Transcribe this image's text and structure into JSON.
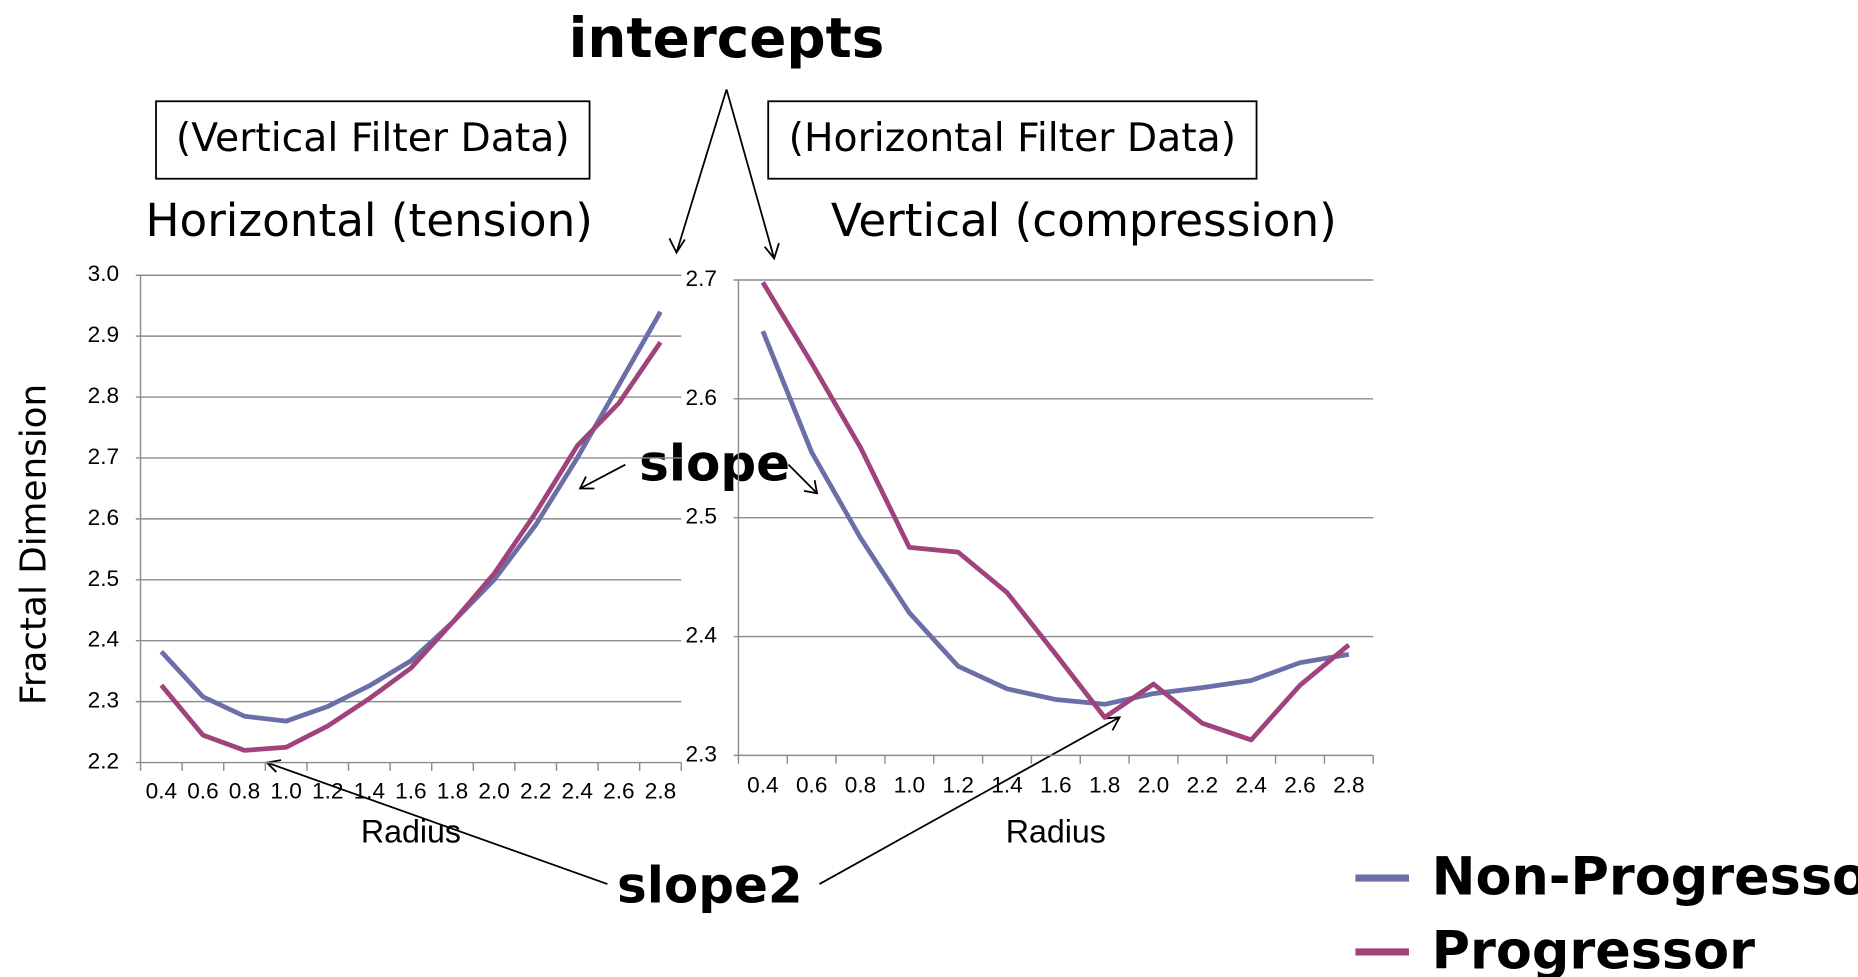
{
  "annotations": [
    "intercepts",
    "slope",
    "slope2"
  ],
  "chart_data": [
    {
      "type": "line",
      "title": "Horizontal (tension)",
      "subtitle": "(Vertical Filter Data)",
      "x_label": "Radius",
      "y_label": "Fractal Dimension",
      "categories": [
        "0.4",
        "0.6",
        "0.8",
        "1.0",
        "1.2",
        "1.4",
        "1.6",
        "1.8",
        "2.0",
        "2.2",
        "2.4",
        "2.6",
        "2.8"
      ],
      "ylim": [
        2.2,
        3
      ],
      "yticks": [
        2.2,
        2.3,
        2.4,
        2.5,
        2.6,
        2.7,
        2.8,
        2.9,
        {
          "value": 3,
          "label": "3.0"
        }
      ],
      "grid": true,
      "series": [
        {
          "name": "Non-Progressor",
          "color": "#6b6fa8",
          "values": [
            2.382,
            2.308,
            2.276,
            2.268,
            2.292,
            2.326,
            2.367,
            2.43,
            2.5,
            2.59,
            2.7,
            2.82,
            2.94
          ]
        },
        {
          "name": "Progressor",
          "color": "#a0437a",
          "values": [
            2.327,
            2.245,
            2.22,
            2.225,
            2.26,
            2.305,
            2.355,
            2.43,
            2.51,
            2.61,
            2.72,
            2.79,
            2.89
          ]
        }
      ]
    },
    {
      "type": "line",
      "title": "Vertical (compression)",
      "subtitle": "(Horizontal Filter Data)",
      "x_label": "Radius",
      "categories": [
        "0.4",
        "0.6",
        "0.8",
        "1.0",
        "1.2",
        "1.4",
        "1.6",
        "1.8",
        "2.0",
        "2.2",
        "2.4",
        "2.6",
        "2.8"
      ],
      "ylim": [
        2.3,
        2.7
      ],
      "yticks": [
        2.3,
        2.4,
        2.5,
        2.6,
        2.7
      ],
      "grid": true,
      "series": [
        {
          "name": "Non-Progressor",
          "color": "#6b6fa8",
          "values": [
            2.657,
            2.555,
            2.483,
            2.42,
            2.375,
            2.356,
            2.347,
            2.343,
            2.352,
            2.357,
            2.363,
            2.378,
            2.385
          ]
        },
        {
          "name": "Progressor",
          "color": "#a0437a",
          "values": [
            2.698,
            2.63,
            2.559,
            2.475,
            2.471,
            2.437,
            2.385,
            2.332,
            2.36,
            2.327,
            2.313,
            2.359,
            2.393
          ]
        }
      ]
    }
  ]
}
